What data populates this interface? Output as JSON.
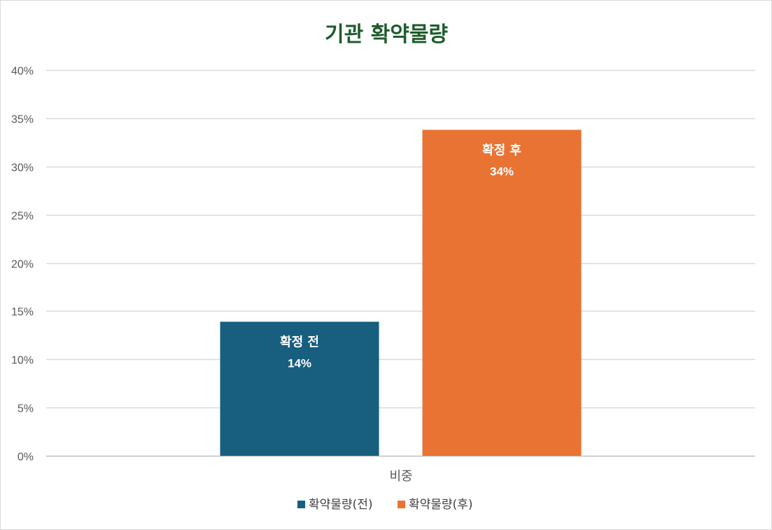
{
  "chart_data": {
    "type": "bar",
    "title": "기관 확약물량",
    "categories": [
      "비중"
    ],
    "ylim": [
      0,
      0.4
    ],
    "y_ticks": [
      "0%",
      "5%",
      "10%",
      "15%",
      "20%",
      "25%",
      "30%",
      "35%",
      "40%"
    ],
    "grid": true,
    "legend_position": "bottom",
    "series": [
      {
        "name": "확약물량(전)",
        "label": "확정 전",
        "value_label": "14%",
        "values": [
          0.139
        ],
        "color": "#175e7f"
      },
      {
        "name": "확약물량(후)",
        "label": "확정 후",
        "value_label": "34%",
        "values": [
          0.338
        ],
        "color": "#e97333"
      }
    ]
  }
}
